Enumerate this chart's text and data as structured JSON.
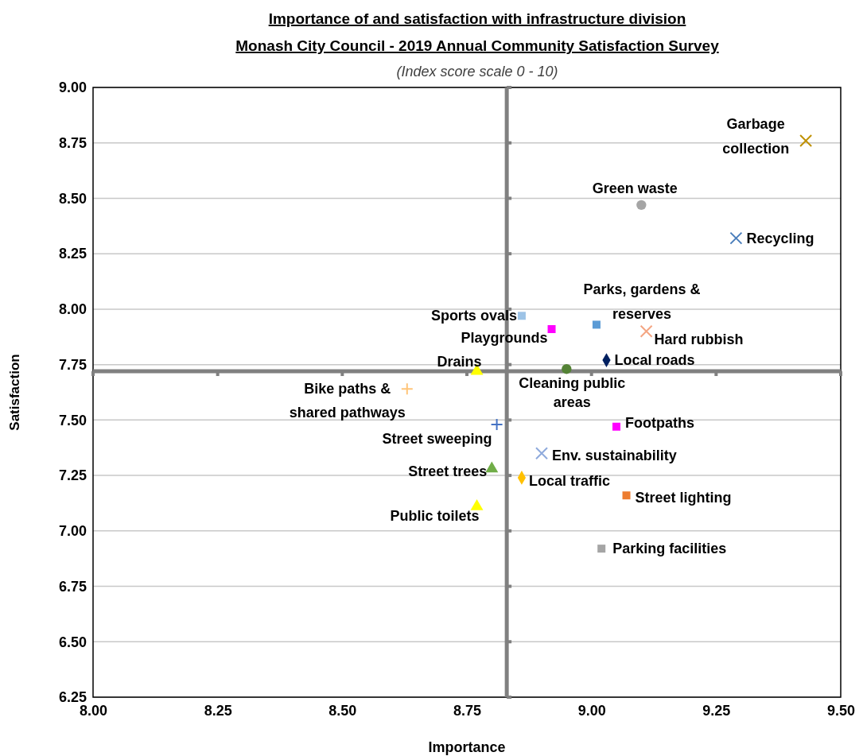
{
  "chart_data": {
    "type": "scatter",
    "title": "Importance of and satisfaction  with infrastructure division",
    "subtitle": "Monash City Council - 2019 Annual Community Satisfaction Survey",
    "annotations": [
      "(Index score scale 0 - 10)"
    ],
    "xlabel": "Importance",
    "ylabel": "Satisfaction",
    "xlim": [
      8,
      9.5
    ],
    "xticks": [
      {
        "value": 8,
        "label": "8.00"
      },
      {
        "value": 8.25,
        "label": "8.25"
      },
      {
        "value": 8.5,
        "label": "8.50"
      },
      {
        "value": 8.75,
        "label": "8.75"
      },
      {
        "value": 9,
        "label": "9.00"
      },
      {
        "value": 9.25,
        "label": "9.25"
      },
      {
        "value": 9.5,
        "label": "9.50"
      }
    ],
    "ylim": [
      6.25,
      9
    ],
    "yticks": [
      {
        "value": 6.25,
        "label": "6.25"
      },
      {
        "value": 6.5,
        "label": "6.50"
      },
      {
        "value": 6.75,
        "label": "6.75"
      },
      {
        "value": 7,
        "label": "7.00"
      },
      {
        "value": 7.25,
        "label": "7.25"
      },
      {
        "value": 7.5,
        "label": "7.50"
      },
      {
        "value": 7.75,
        "label": "7.75"
      },
      {
        "value": 8,
        "label": "8.00"
      },
      {
        "value": 8.25,
        "label": "8.25"
      },
      {
        "value": 8.5,
        "label": "8.50"
      },
      {
        "value": 8.75,
        "label": "8.75"
      },
      {
        "value": 9,
        "label": "9.00"
      }
    ],
    "grid": "y",
    "ref_lines": [
      {
        "axis": "x",
        "value": 8.83,
        "label": null,
        "color": "#808080"
      },
      {
        "axis": "y",
        "value": 7.72,
        "label": null,
        "color": "#808080"
      }
    ],
    "series": [
      {
        "name": "Garbage collection",
        "color": "#bf9000",
        "marker": "x",
        "x": [
          9.43
        ],
        "values": [
          8.76
        ]
      },
      {
        "name": "Green waste",
        "color": "#a5a5a5",
        "marker": "circle",
        "x": [
          9.1
        ],
        "values": [
          8.47
        ]
      },
      {
        "name": "Recycling",
        "color": "#4a7ebb",
        "marker": "x",
        "x": [
          9.29
        ],
        "values": [
          8.32
        ]
      },
      {
        "name": "Parks, gardens & reserves",
        "color": "#5b9bd5",
        "marker": "square",
        "x": [
          9.01
        ],
        "values": [
          7.93
        ]
      },
      {
        "name": "Hard rubbish",
        "color": "#f4a582",
        "marker": "x",
        "x": [
          9.11
        ],
        "values": [
          7.9
        ]
      },
      {
        "name": "Sports ovals",
        "color": "#9dc3e6",
        "marker": "square",
        "x": [
          8.86
        ],
        "values": [
          7.97
        ]
      },
      {
        "name": "Playgrounds",
        "color": "#ff00ff",
        "marker": "square",
        "x": [
          8.92
        ],
        "values": [
          7.91
        ]
      },
      {
        "name": "Local roads",
        "color": "#002060",
        "marker": "diamond",
        "x": [
          9.03
        ],
        "values": [
          7.77
        ]
      },
      {
        "name": "Drains",
        "color": "#ffff00",
        "marker": "triangle",
        "x": [
          8.77
        ],
        "values": [
          7.72
        ]
      },
      {
        "name": "Cleaning public areas",
        "color": "#548235",
        "marker": "circle",
        "x": [
          8.95
        ],
        "values": [
          7.73
        ]
      },
      {
        "name": "Bike paths & shared pathways",
        "color": "#ffc57a",
        "marker": "cross",
        "x": [
          8.63
        ],
        "values": [
          7.64
        ]
      },
      {
        "name": "Street sweeping",
        "color": "#4472c4",
        "marker": "cross",
        "x": [
          8.81
        ],
        "values": [
          7.48
        ]
      },
      {
        "name": "Footpaths",
        "color": "#ff00ff",
        "marker": "square",
        "x": [
          9.05
        ],
        "values": [
          7.47
        ]
      },
      {
        "name": "Env. sustainability",
        "color": "#8faadc",
        "marker": "x",
        "x": [
          8.9
        ],
        "values": [
          7.35
        ]
      },
      {
        "name": "Street trees",
        "color": "#70ad47",
        "marker": "triangle",
        "x": [
          8.8
        ],
        "values": [
          7.28
        ]
      },
      {
        "name": "Local traffic",
        "color": "#ffc000",
        "marker": "diamond",
        "x": [
          8.86
        ],
        "values": [
          7.24
        ]
      },
      {
        "name": "Street lighting",
        "color": "#ed7d31",
        "marker": "square",
        "x": [
          9.07
        ],
        "values": [
          7.16
        ]
      },
      {
        "name": "Public toilets",
        "color": "#ffff00",
        "marker": "triangle",
        "x": [
          8.77
        ],
        "values": [
          7.11
        ]
      },
      {
        "name": "Parking facilities",
        "color": "#a5a5a5",
        "marker": "square",
        "x": [
          9.02
        ],
        "values": [
          6.92
        ]
      }
    ]
  }
}
